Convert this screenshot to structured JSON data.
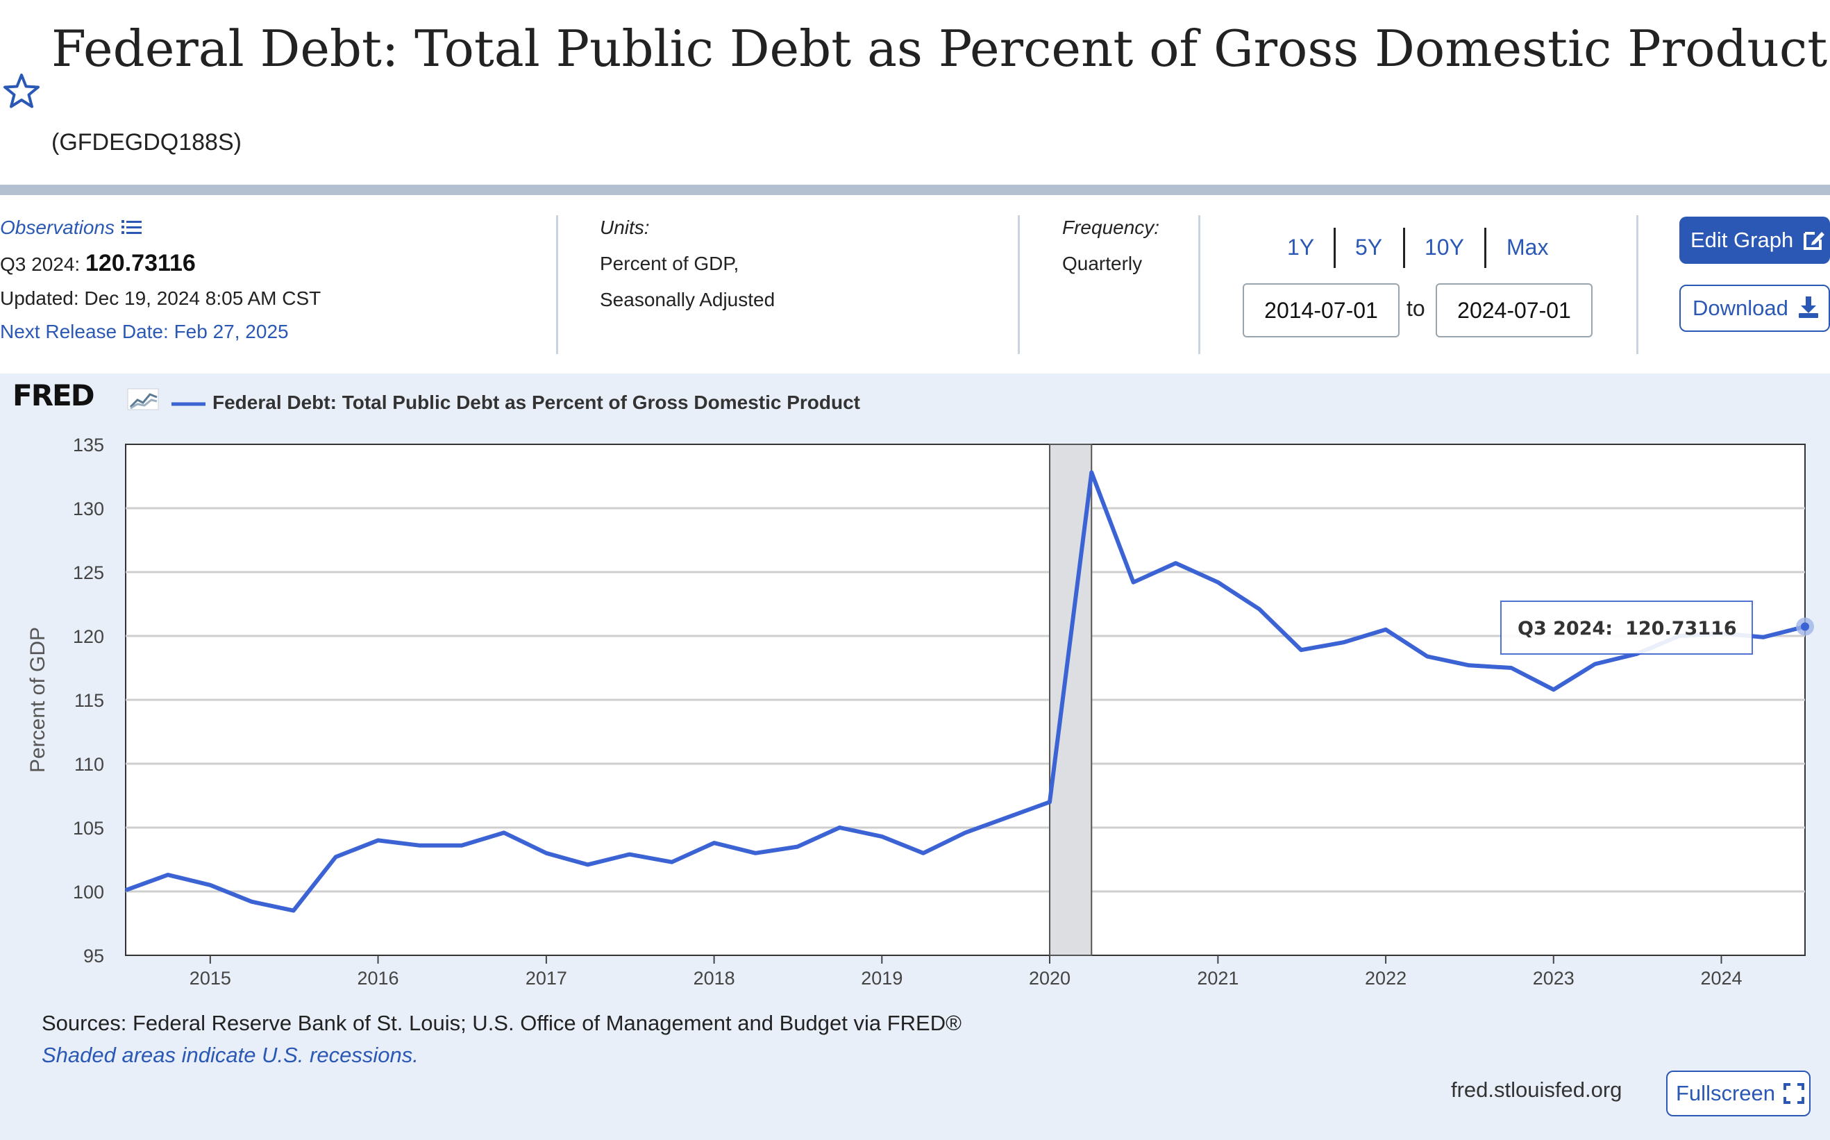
{
  "header": {
    "title": "Federal Debt: Total Public Debt as Percent of Gross Domestic Product",
    "series_id": "(GFDEGDQ188S)"
  },
  "meta": {
    "observations_label": "Observations",
    "latest_period": "Q3 2024:",
    "latest_value": "120.73116",
    "updated": "Updated: Dec 19, 2024 8:05 AM CST",
    "next_release": "Next Release Date: Feb 27, 2025",
    "units_label": "Units:",
    "units_line1": "Percent of GDP,",
    "units_line2": "Seasonally Adjusted",
    "frequency_label": "Frequency:",
    "frequency_value": "Quarterly"
  },
  "range": {
    "buttons": [
      "1Y",
      "5Y",
      "10Y",
      "Max"
    ],
    "start": "2014-07-01",
    "to_label": "to",
    "end": "2024-07-01"
  },
  "actions": {
    "edit_graph": "Edit Graph",
    "download": "Download",
    "fullscreen": "Fullscreen"
  },
  "footer": {
    "sources": "Sources: Federal Reserve Bank of St. Louis; U.S. Office of Management and Budget via FRED®",
    "recession_note": "Shaded areas indicate U.S. recessions.",
    "site": "fred.stlouisfed.org"
  },
  "brand": {
    "logo_text": "FRED",
    "accent": "#2a58b4",
    "line_color": "#3b63d4"
  },
  "chart_data": {
    "type": "line",
    "title": "",
    "legend": "Federal Debt: Total Public Debt as Percent of Gross Domestic Product",
    "ylabel": "Percent of GDP",
    "xlabel": "",
    "ylim": [
      95,
      135
    ],
    "yticks": [
      95,
      100,
      105,
      110,
      115,
      120,
      125,
      130,
      135
    ],
    "xticks": [
      "2015",
      "2016",
      "2017",
      "2018",
      "2019",
      "2020",
      "2021",
      "2022",
      "2023",
      "2024"
    ],
    "grid": true,
    "recession": {
      "start": "2020-01-01",
      "end": "2020-04-01"
    },
    "series": [
      {
        "name": "Federal Debt: Total Public Debt as Percent of Gross Domestic Product",
        "x": [
          "2014-07-01",
          "2014-10-01",
          "2015-01-01",
          "2015-04-01",
          "2015-07-01",
          "2015-10-01",
          "2016-01-01",
          "2016-04-01",
          "2016-07-01",
          "2016-10-01",
          "2017-01-01",
          "2017-04-01",
          "2017-07-01",
          "2017-10-01",
          "2018-01-01",
          "2018-04-01",
          "2018-07-01",
          "2018-10-01",
          "2019-01-01",
          "2019-04-01",
          "2019-07-01",
          "2019-10-01",
          "2020-01-01",
          "2020-04-01",
          "2020-07-01",
          "2020-10-01",
          "2021-01-01",
          "2021-04-01",
          "2021-07-01",
          "2021-10-01",
          "2022-01-01",
          "2022-04-01",
          "2022-07-01",
          "2022-10-01",
          "2023-01-01",
          "2023-04-01",
          "2023-07-01",
          "2023-10-01",
          "2024-01-01",
          "2024-04-01",
          "2024-07-01"
        ],
        "values": [
          100.1,
          101.3,
          100.5,
          99.2,
          98.5,
          102.7,
          104.0,
          103.6,
          103.6,
          104.6,
          103.0,
          102.1,
          102.9,
          102.3,
          103.8,
          103.0,
          103.5,
          105.0,
          104.3,
          103.0,
          104.6,
          105.8,
          107.0,
          132.8,
          124.2,
          125.7,
          124.2,
          122.1,
          118.9,
          119.5,
          120.5,
          118.4,
          117.7,
          117.5,
          115.8,
          117.8,
          118.6,
          120.0,
          120.2,
          119.9,
          120.73116
        ]
      }
    ],
    "tooltip": {
      "label": "Q3 2024:",
      "value": "120.73116"
    }
  }
}
